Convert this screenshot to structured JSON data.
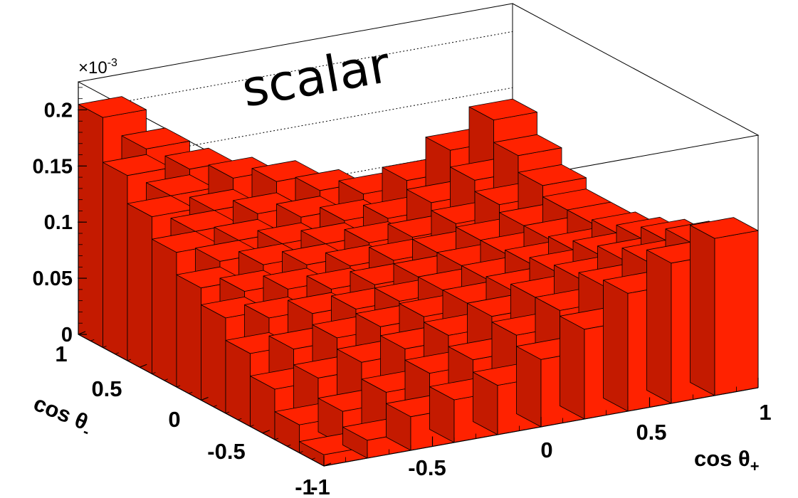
{
  "chart_data": {
    "type": "lego3d",
    "title": "scalar",
    "z_multiplier": "×10",
    "z_multiplier_exp": "-3",
    "z_range": [
      0,
      0.225
    ],
    "z_ticks": [
      "0",
      "0.05",
      "0.1",
      "0.15",
      "0.2"
    ],
    "x_label_main": "cos θ",
    "x_label_sub": "+",
    "y_label_main": "cos θ",
    "y_label_sub": "-",
    "x_range": [
      -1,
      1
    ],
    "y_range": [
      -1,
      1
    ],
    "x_ticks": [
      "-1",
      "-0.5",
      "0",
      "0.5",
      "1"
    ],
    "y_ticks": [
      "-1",
      "-0.5",
      "0",
      "0.5",
      "1"
    ],
    "bar_color": "#ff2200",
    "x_bins": [
      -1,
      -0.8,
      -0.6,
      -0.4,
      -0.2,
      0,
      0.2,
      0.4,
      0.6,
      0.8,
      1
    ],
    "y_bins": [
      -1,
      -0.8,
      -0.6,
      -0.4,
      -0.2,
      0,
      0.2,
      0.4,
      0.6,
      0.8,
      1
    ],
    "values": [
      [
        0.01,
        0.016,
        0.03,
        0.038,
        0.044,
        0.06,
        0.08,
        0.105,
        0.125,
        0.14
      ],
      [
        0.025,
        0.03,
        0.04,
        0.05,
        0.055,
        0.07,
        0.085,
        0.1,
        0.115,
        0.125
      ],
      [
        0.045,
        0.048,
        0.055,
        0.06,
        0.065,
        0.075,
        0.085,
        0.095,
        0.105,
        0.115
      ],
      [
        0.065,
        0.062,
        0.065,
        0.068,
        0.07,
        0.075,
        0.08,
        0.09,
        0.098,
        0.105
      ],
      [
        0.085,
        0.078,
        0.075,
        0.072,
        0.072,
        0.075,
        0.078,
        0.085,
        0.09,
        0.098
      ],
      [
        0.1,
        0.09,
        0.085,
        0.078,
        0.075,
        0.075,
        0.078,
        0.082,
        0.088,
        0.095
      ],
      [
        0.12,
        0.105,
        0.095,
        0.088,
        0.08,
        0.078,
        0.078,
        0.082,
        0.088,
        0.095
      ],
      [
        0.14,
        0.12,
        0.105,
        0.095,
        0.088,
        0.082,
        0.08,
        0.085,
        0.095,
        0.105
      ],
      [
        0.165,
        0.14,
        0.12,
        0.11,
        0.1,
        0.09,
        0.085,
        0.092,
        0.105,
        0.12
      ],
      [
        0.205,
        0.17,
        0.145,
        0.13,
        0.12,
        0.105,
        0.095,
        0.1,
        0.12,
        0.14
      ]
    ]
  }
}
